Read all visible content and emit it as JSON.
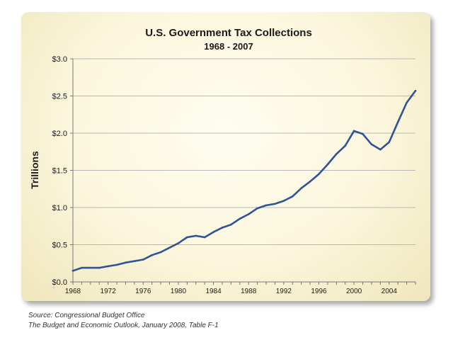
{
  "chart_data": {
    "type": "line",
    "title": "U.S. Government Tax Collections",
    "subtitle": "1968 - 2007",
    "xlabel": "",
    "ylabel": "Trillions",
    "xlim": [
      1968,
      2007
    ],
    "ylim": [
      0,
      3.0
    ],
    "grid": true,
    "x_ticks": [
      1968,
      1972,
      1976,
      1980,
      1984,
      1988,
      1992,
      1996,
      2000,
      2004
    ],
    "x_tick_labels": [
      "1968",
      "1972",
      "1976",
      "1980",
      "1984",
      "1988",
      "1992",
      "1996",
      "2000",
      "2004"
    ],
    "y_ticks": [
      0,
      0.5,
      1.0,
      1.5,
      2.0,
      2.5,
      3.0
    ],
    "y_tick_labels": [
      "$0.0",
      "$0.5",
      "$1.0",
      "$1.5",
      "$2.0",
      "$2.5",
      "$3.0"
    ],
    "series": [
      {
        "name": "Tax Collections",
        "color": "#2f5496",
        "x": [
          1968,
          1969,
          1970,
          1971,
          1972,
          1973,
          1974,
          1975,
          1976,
          1977,
          1978,
          1979,
          1980,
          1981,
          1982,
          1983,
          1984,
          1985,
          1986,
          1987,
          1988,
          1989,
          1990,
          1991,
          1992,
          1993,
          1994,
          1995,
          1996,
          1997,
          1998,
          1999,
          2000,
          2001,
          2002,
          2003,
          2004,
          2005,
          2006,
          2007
        ],
        "values": [
          0.15,
          0.19,
          0.19,
          0.19,
          0.21,
          0.23,
          0.26,
          0.28,
          0.3,
          0.36,
          0.4,
          0.46,
          0.52,
          0.6,
          0.62,
          0.6,
          0.67,
          0.73,
          0.77,
          0.85,
          0.91,
          0.99,
          1.03,
          1.05,
          1.09,
          1.15,
          1.26,
          1.35,
          1.45,
          1.58,
          1.72,
          1.83,
          2.03,
          1.99,
          1.85,
          1.78,
          1.88,
          2.15,
          2.41,
          2.57
        ]
      }
    ]
  },
  "source": {
    "line1": "Source: Congressional Budget Office",
    "line2": "The Budget and Economic Outlook, January 2008, Table F-1"
  }
}
